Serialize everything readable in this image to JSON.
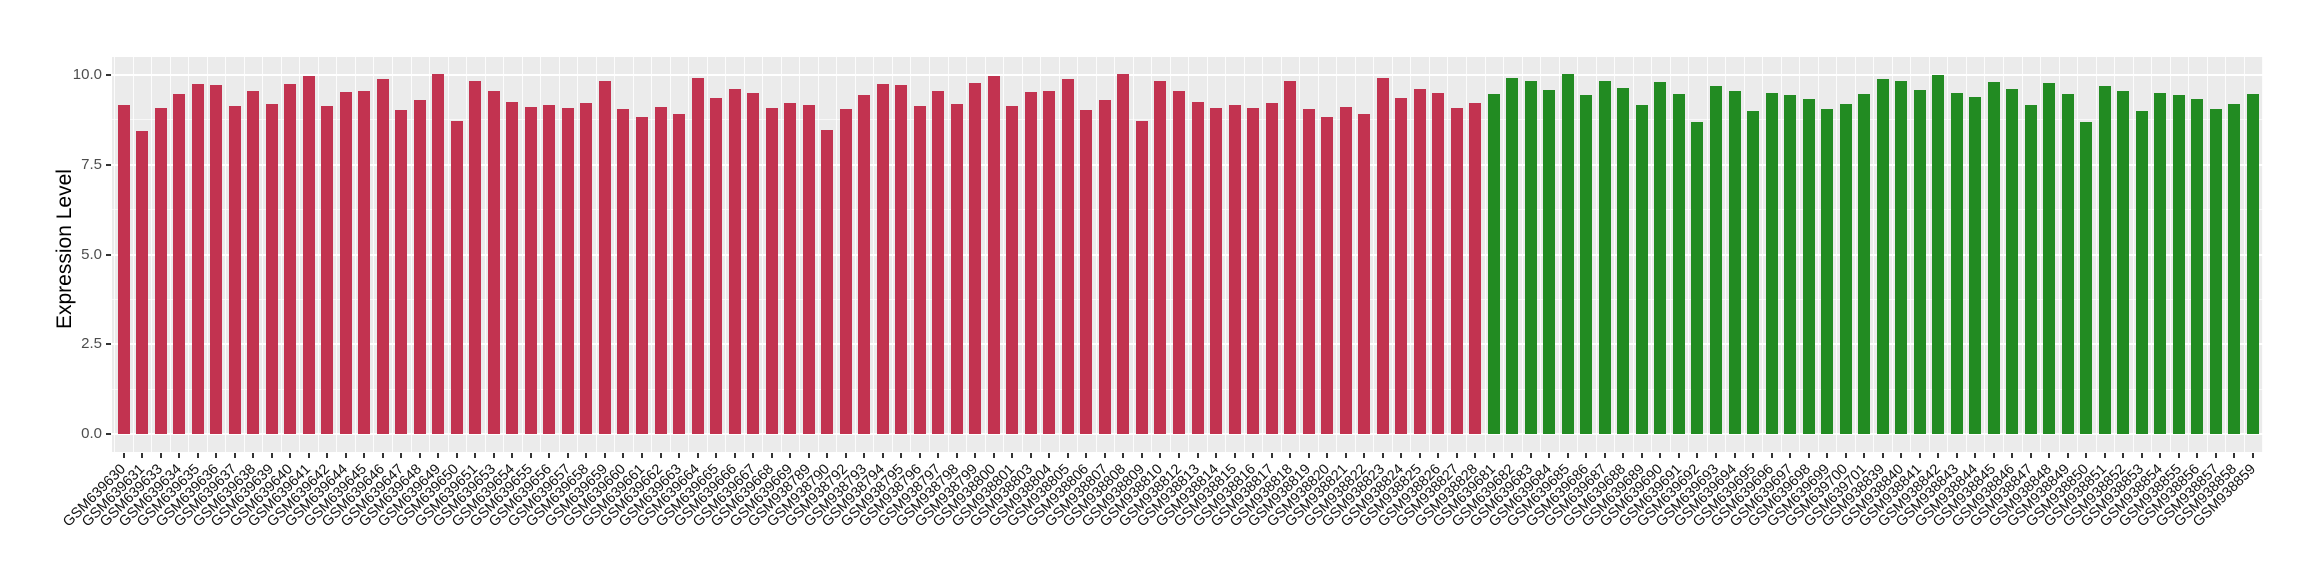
{
  "figure": {
    "background": "#FFFFFF",
    "panel_background": "#EBEBEB",
    "grid_color": "#FFFFFF",
    "tick_color": "#333333",
    "axis_text_color": "#4D4D4D",
    "x_label_color": "#111111"
  },
  "chart_data": {
    "type": "bar",
    "title": "",
    "xlabel": "",
    "ylabel": "Expression Level",
    "yticks": [
      "0.0",
      "2.5",
      "5.0",
      "7.5",
      "10.0"
    ],
    "ytick_values": [
      0.0,
      2.5,
      5.0,
      7.5,
      10.0
    ],
    "yminor_values": [
      1.25,
      3.75,
      6.25,
      8.75
    ],
    "ylim": [
      -0.5,
      10.5
    ],
    "grid": true,
    "legend_position": "none",
    "x_label_angle": 45,
    "group_colors": [
      "#C23350",
      "#228B22"
    ],
    "group_split_index": 74,
    "categories": [
      "GSM639630",
      "GSM639631",
      "GSM639633",
      "GSM639634",
      "GSM639635",
      "GSM639636",
      "GSM639637",
      "GSM639638",
      "GSM639639",
      "GSM639640",
      "GSM639641",
      "GSM639642",
      "GSM639644",
      "GSM639645",
      "GSM639646",
      "GSM639647",
      "GSM639648",
      "GSM639649",
      "GSM639650",
      "GSM639651",
      "GSM639653",
      "GSM639654",
      "GSM639655",
      "GSM639656",
      "GSM639657",
      "GSM639658",
      "GSM639659",
      "GSM639660",
      "GSM639661",
      "GSM639662",
      "GSM639663",
      "GSM639664",
      "GSM639665",
      "GSM639666",
      "GSM639667",
      "GSM639668",
      "GSM639669",
      "GSM938789",
      "GSM938790",
      "GSM938792",
      "GSM938793",
      "GSM938794",
      "GSM938795",
      "GSM938796",
      "GSM938797",
      "GSM938798",
      "GSM938799",
      "GSM938800",
      "GSM938801",
      "GSM938803",
      "GSM938804",
      "GSM938805",
      "GSM938806",
      "GSM938807",
      "GSM938808",
      "GSM938809",
      "GSM938810",
      "GSM938812",
      "GSM938813",
      "GSM938814",
      "GSM938815",
      "GSM938816",
      "GSM938817",
      "GSM938818",
      "GSM938819",
      "GSM938820",
      "GSM938821",
      "GSM938822",
      "GSM938823",
      "GSM938824",
      "GSM938825",
      "GSM938826",
      "GSM938827",
      "GSM938828",
      "GSM639681",
      "GSM639682",
      "GSM639683",
      "GSM639684",
      "GSM639685",
      "GSM639686",
      "GSM639687",
      "GSM639688",
      "GSM639689",
      "GSM639690",
      "GSM639691",
      "GSM639692",
      "GSM639693",
      "GSM639694",
      "GSM639695",
      "GSM639696",
      "GSM639697",
      "GSM639698",
      "GSM639699",
      "GSM639700",
      "GSM639701",
      "GSM938839",
      "GSM938840",
      "GSM938841",
      "GSM938842",
      "GSM938843",
      "GSM938844",
      "GSM938845",
      "GSM938846",
      "GSM938847",
      "GSM938848",
      "GSM938849",
      "GSM938850",
      "GSM938851",
      "GSM938852",
      "GSM938853",
      "GSM938854",
      "GSM938855",
      "GSM938856",
      "GSM938857",
      "GSM938858",
      "GSM938859"
    ],
    "values": [
      9.16,
      8.45,
      9.07,
      9.46,
      9.76,
      9.71,
      9.14,
      9.56,
      9.18,
      9.76,
      9.98,
      9.14,
      9.53,
      9.56,
      9.89,
      9.03,
      9.31,
      10.02,
      8.72,
      9.82,
      9.54,
      9.24,
      9.1,
      9.16,
      9.09,
      9.22,
      9.83,
      9.06,
      8.82,
      9.11,
      8.92,
      9.92,
      9.35,
      9.61,
      9.51,
      9.07,
      9.21,
      9.16,
      8.46,
      9.06,
      9.44,
      9.76,
      9.71,
      9.13,
      9.56,
      9.18,
      9.77,
      9.97,
      9.13,
      9.53,
      9.56,
      9.89,
      9.02,
      9.31,
      10.03,
      8.72,
      9.83,
      9.54,
      9.26,
      9.07,
      9.16,
      9.09,
      9.22,
      9.82,
      9.06,
      8.82,
      9.11,
      8.91,
      9.92,
      9.35,
      9.61,
      9.51,
      9.07,
      9.21,
      9.46,
      9.92,
      9.83,
      9.58,
      10.02,
      9.45,
      9.82,
      9.63,
      9.16,
      9.79,
      9.47,
      8.69,
      9.68,
      9.55,
      9.01,
      9.49,
      9.44,
      9.34,
      9.06,
      9.19,
      9.48,
      9.9,
      9.82,
      9.58,
      10.01,
      9.49,
      9.4,
      9.81,
      9.62,
      9.16,
      9.78,
      9.46,
      8.69,
      9.68,
      9.55,
      9.0,
      9.49,
      9.43,
      9.34,
      9.06,
      9.19,
      9.48
    ]
  }
}
